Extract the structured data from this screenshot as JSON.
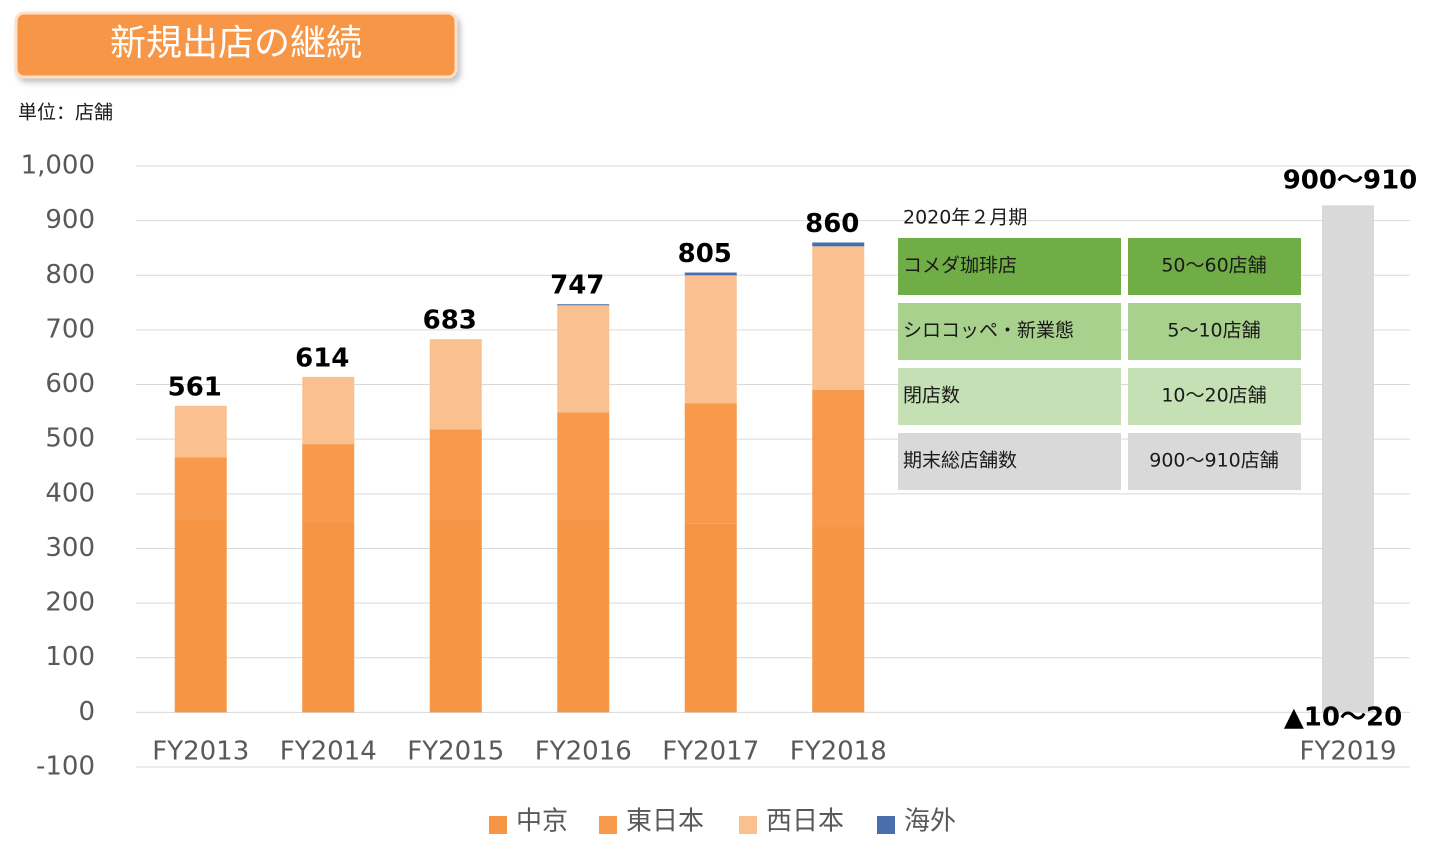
{
  "chart_data": {
    "type": "stacked-bar",
    "title": "新規出店の継続",
    "unit_label": "単位：店舗",
    "categories": [
      "FY2013",
      "FY2014",
      "FY2015",
      "FY2016",
      "FY2017",
      "FY2018"
    ],
    "series": [
      {
        "name": "中京",
        "color": "#f69543",
        "values": [
          353,
          350,
          352,
          352,
          346,
          341
        ]
      },
      {
        "name": "東日本",
        "color": "#f79a4b",
        "values": [
          114,
          141,
          166,
          197,
          220,
          249
        ]
      },
      {
        "name": "西日本",
        "color": "#fac090",
        "values": [
          94,
          123,
          165,
          196,
          234,
          263
        ]
      },
      {
        "name": "海外",
        "color": "#4a6ead",
        "values": [
          0,
          0,
          0,
          2,
          5,
          7
        ]
      }
    ],
    "totals": [
      561,
      614,
      683,
      747,
      805,
      860
    ],
    "forecast": {
      "category": "FY2019",
      "range": [
        0,
        928
      ],
      "color": "#d9d9d9",
      "top_label": "900〜910",
      "bottom_label": "▲10〜20"
    },
    "ylim": [
      -100,
      1000
    ],
    "yticks": [
      -100,
      0,
      100,
      200,
      300,
      400,
      500,
      600,
      700,
      800,
      900,
      {
        "value": 1000,
        "label": "1,000"
      }
    ],
    "grid": true,
    "table": {
      "title": "2020年２月期",
      "rows": [
        [
          "コメダ珈琲店",
          "50〜60店舗"
        ],
        [
          "シロコッペ・新業態",
          "5〜10店舗"
        ],
        [
          "閉店数",
          "10〜20店舗"
        ],
        [
          "期末総店舗数",
          "900〜910店舗"
        ]
      ]
    }
  }
}
